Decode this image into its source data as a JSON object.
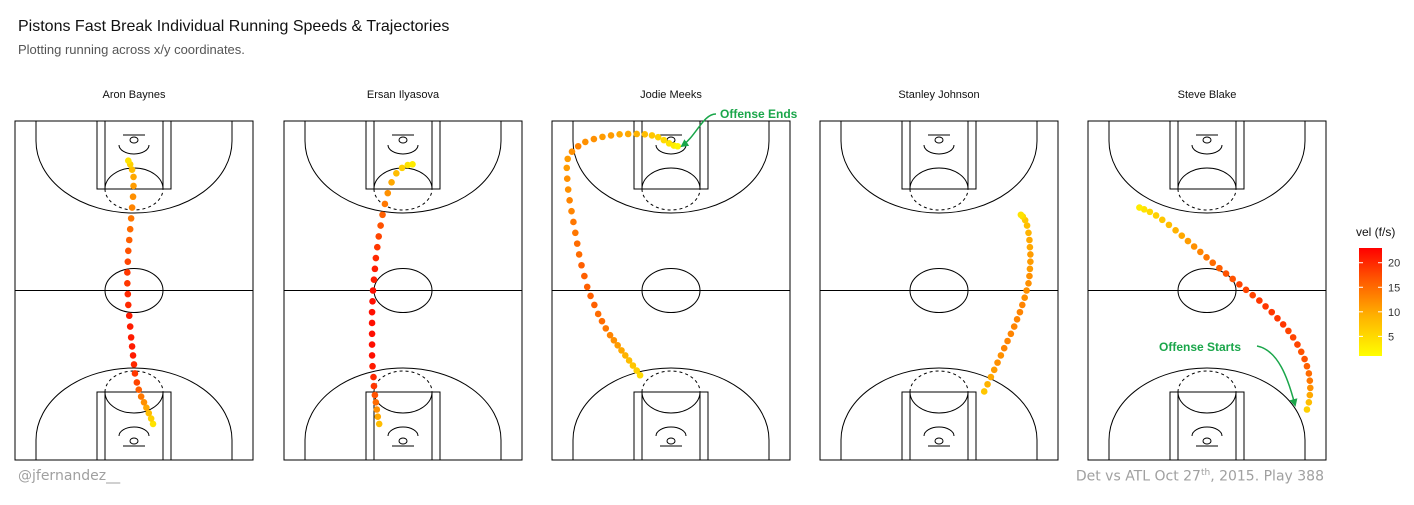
{
  "chart_data": {
    "type": "scatter",
    "title": "Pistons Fast Break Individual Running Speeds & Trajectories",
    "subtitle": "Plotting running across x/y coordinates.",
    "legend": {
      "title": "vel (f/s)",
      "ticks": [
        5,
        10,
        15,
        20
      ],
      "range": [
        1,
        23
      ],
      "colors": [
        "#ffff00",
        "#ffa500",
        "#ff4500",
        "#ff0000"
      ],
      "placement": "right"
    },
    "court": {
      "xlim": [
        0,
        50
      ],
      "ylim": [
        0,
        94
      ]
    },
    "panels": [
      {
        "name": "Aron Baynes",
        "points": [
          {
            "x": 29,
            "y": 10,
            "v": 4
          },
          {
            "x": 28.6,
            "y": 11.5,
            "v": 6
          },
          {
            "x": 28.1,
            "y": 13,
            "v": 8
          },
          {
            "x": 27.6,
            "y": 14.5,
            "v": 10
          },
          {
            "x": 27.1,
            "y": 16,
            "v": 12
          },
          {
            "x": 26.5,
            "y": 17.6,
            "v": 14
          },
          {
            "x": 26,
            "y": 19.5,
            "v": 16
          },
          {
            "x": 25.6,
            "y": 21.5,
            "v": 18
          },
          {
            "x": 25.2,
            "y": 24,
            "v": 19
          },
          {
            "x": 25,
            "y": 26.5,
            "v": 20
          },
          {
            "x": 24.8,
            "y": 29,
            "v": 21
          },
          {
            "x": 24.6,
            "y": 31.5,
            "v": 21
          },
          {
            "x": 24.4,
            "y": 34,
            "v": 21
          },
          {
            "x": 24.2,
            "y": 37,
            "v": 21
          },
          {
            "x": 24,
            "y": 40,
            "v": 21
          },
          {
            "x": 23.8,
            "y": 43,
            "v": 20
          },
          {
            "x": 23.7,
            "y": 46,
            "v": 20
          },
          {
            "x": 23.6,
            "y": 49,
            "v": 19
          },
          {
            "x": 23.6,
            "y": 52,
            "v": 19
          },
          {
            "x": 23.7,
            "y": 55,
            "v": 18
          },
          {
            "x": 23.8,
            "y": 58,
            "v": 17
          },
          {
            "x": 24,
            "y": 61,
            "v": 16
          },
          {
            "x": 24.2,
            "y": 64,
            "v": 15
          },
          {
            "x": 24.4,
            "y": 67,
            "v": 14
          },
          {
            "x": 24.6,
            "y": 70,
            "v": 13
          },
          {
            "x": 24.8,
            "y": 73,
            "v": 12
          },
          {
            "x": 24.9,
            "y": 76,
            "v": 11
          },
          {
            "x": 24.9,
            "y": 78.5,
            "v": 10
          },
          {
            "x": 24.6,
            "y": 80.5,
            "v": 8
          },
          {
            "x": 24.2,
            "y": 82,
            "v": 6
          },
          {
            "x": 23.8,
            "y": 83,
            "v": 4
          }
        ]
      },
      {
        "name": "Ersan Ilyasova",
        "points": [
          {
            "x": 20,
            "y": 10,
            "v": 8
          },
          {
            "x": 19.7,
            "y": 12,
            "v": 10
          },
          {
            "x": 19.5,
            "y": 14,
            "v": 12
          },
          {
            "x": 19.3,
            "y": 16,
            "v": 15
          },
          {
            "x": 19.1,
            "y": 18,
            "v": 17
          },
          {
            "x": 18.9,
            "y": 20.5,
            "v": 19
          },
          {
            "x": 18.8,
            "y": 23,
            "v": 20
          },
          {
            "x": 18.6,
            "y": 26,
            "v": 21
          },
          {
            "x": 18.5,
            "y": 29,
            "v": 22
          },
          {
            "x": 18.5,
            "y": 32,
            "v": 22
          },
          {
            "x": 18.5,
            "y": 35,
            "v": 22
          },
          {
            "x": 18.5,
            "y": 38,
            "v": 22
          },
          {
            "x": 18.5,
            "y": 41,
            "v": 22
          },
          {
            "x": 18.6,
            "y": 44,
            "v": 22
          },
          {
            "x": 18.7,
            "y": 47,
            "v": 22
          },
          {
            "x": 18.9,
            "y": 50,
            "v": 21
          },
          {
            "x": 19.1,
            "y": 53,
            "v": 21
          },
          {
            "x": 19.3,
            "y": 56,
            "v": 20
          },
          {
            "x": 19.6,
            "y": 59,
            "v": 19
          },
          {
            "x": 19.9,
            "y": 62,
            "v": 18
          },
          {
            "x": 20.3,
            "y": 65,
            "v": 17
          },
          {
            "x": 20.7,
            "y": 68,
            "v": 16
          },
          {
            "x": 21.2,
            "y": 71,
            "v": 14
          },
          {
            "x": 21.8,
            "y": 74,
            "v": 12
          },
          {
            "x": 22.6,
            "y": 77,
            "v": 10
          },
          {
            "x": 23.6,
            "y": 79.5,
            "v": 8
          },
          {
            "x": 24.8,
            "y": 81,
            "v": 6
          },
          {
            "x": 26,
            "y": 81.8,
            "v": 4
          },
          {
            "x": 27,
            "y": 82,
            "v": 3
          }
        ]
      },
      {
        "name": "Jodie Meeks",
        "points": [
          {
            "x": 18.5,
            "y": 23.5,
            "v": 5
          },
          {
            "x": 17.8,
            "y": 24.8,
            "v": 6
          },
          {
            "x": 17,
            "y": 26.2,
            "v": 7
          },
          {
            "x": 16.2,
            "y": 27.6,
            "v": 8
          },
          {
            "x": 15.4,
            "y": 29,
            "v": 9
          },
          {
            "x": 14.6,
            "y": 30.4,
            "v": 10
          },
          {
            "x": 13.8,
            "y": 31.8,
            "v": 11
          },
          {
            "x": 13,
            "y": 33.2,
            "v": 12
          },
          {
            "x": 12.2,
            "y": 34.6,
            "v": 13
          },
          {
            "x": 11.3,
            "y": 36.5,
            "v": 14
          },
          {
            "x": 10.5,
            "y": 38.5,
            "v": 15
          },
          {
            "x": 9.7,
            "y": 40.5,
            "v": 15
          },
          {
            "x": 8.9,
            "y": 43,
            "v": 16
          },
          {
            "x": 8.1,
            "y": 45.5,
            "v": 16
          },
          {
            "x": 7.4,
            "y": 48,
            "v": 16
          },
          {
            "x": 6.8,
            "y": 51,
            "v": 16
          },
          {
            "x": 6.2,
            "y": 54,
            "v": 16
          },
          {
            "x": 5.7,
            "y": 57,
            "v": 15
          },
          {
            "x": 5.3,
            "y": 60,
            "v": 15
          },
          {
            "x": 4.9,
            "y": 63,
            "v": 14
          },
          {
            "x": 4.5,
            "y": 66,
            "v": 14
          },
          {
            "x": 4.1,
            "y": 69,
            "v": 13
          },
          {
            "x": 3.7,
            "y": 72,
            "v": 13
          },
          {
            "x": 3.4,
            "y": 75,
            "v": 12
          },
          {
            "x": 3.2,
            "y": 78,
            "v": 12
          },
          {
            "x": 3.1,
            "y": 81,
            "v": 11
          },
          {
            "x": 3.3,
            "y": 83.5,
            "v": 11
          },
          {
            "x": 4.2,
            "y": 85.5,
            "v": 12
          },
          {
            "x": 5.5,
            "y": 87,
            "v": 13
          },
          {
            "x": 7,
            "y": 88.2,
            "v": 12
          },
          {
            "x": 8.8,
            "y": 89,
            "v": 12
          },
          {
            "x": 10.6,
            "y": 89.6,
            "v": 11
          },
          {
            "x": 12.4,
            "y": 90,
            "v": 11
          },
          {
            "x": 14.2,
            "y": 90.3,
            "v": 10
          },
          {
            "x": 16,
            "y": 90.4,
            "v": 10
          },
          {
            "x": 17.8,
            "y": 90.4,
            "v": 9
          },
          {
            "x": 19.5,
            "y": 90.3,
            "v": 8
          },
          {
            "x": 21,
            "y": 90,
            "v": 7
          },
          {
            "x": 22.3,
            "y": 89.5,
            "v": 6
          },
          {
            "x": 23.5,
            "y": 88.7,
            "v": 5
          },
          {
            "x": 24.6,
            "y": 87.8,
            "v": 4
          },
          {
            "x": 25.6,
            "y": 87.2,
            "v": 3
          },
          {
            "x": 26.4,
            "y": 87,
            "v": 2
          }
        ]
      },
      {
        "name": "Stanley Johnson",
        "points": [
          {
            "x": 34.5,
            "y": 19,
            "v": 7
          },
          {
            "x": 35.2,
            "y": 21,
            "v": 9
          },
          {
            "x": 35.9,
            "y": 23,
            "v": 10
          },
          {
            "x": 36.6,
            "y": 25,
            "v": 11
          },
          {
            "x": 37.3,
            "y": 27,
            "v": 12
          },
          {
            "x": 38,
            "y": 29,
            "v": 12
          },
          {
            "x": 38.7,
            "y": 31,
            "v": 13
          },
          {
            "x": 39.4,
            "y": 33,
            "v": 13
          },
          {
            "x": 40.1,
            "y": 35,
            "v": 13
          },
          {
            "x": 40.8,
            "y": 37,
            "v": 13
          },
          {
            "x": 41.4,
            "y": 39,
            "v": 13
          },
          {
            "x": 42,
            "y": 41,
            "v": 13
          },
          {
            "x": 42.5,
            "y": 43,
            "v": 13
          },
          {
            "x": 43,
            "y": 45,
            "v": 12
          },
          {
            "x": 43.4,
            "y": 47,
            "v": 12
          },
          {
            "x": 43.8,
            "y": 49,
            "v": 12
          },
          {
            "x": 44,
            "y": 51,
            "v": 12
          },
          {
            "x": 44.1,
            "y": 53,
            "v": 11
          },
          {
            "x": 44.2,
            "y": 55,
            "v": 11
          },
          {
            "x": 44.2,
            "y": 57,
            "v": 11
          },
          {
            "x": 44.1,
            "y": 59,
            "v": 10
          },
          {
            "x": 44,
            "y": 61,
            "v": 10
          },
          {
            "x": 43.8,
            "y": 63,
            "v": 9
          },
          {
            "x": 43.5,
            "y": 65,
            "v": 8
          },
          {
            "x": 43.1,
            "y": 66.5,
            "v": 7
          },
          {
            "x": 42.6,
            "y": 67.5,
            "v": 5
          },
          {
            "x": 42.2,
            "y": 68,
            "v": 4
          }
        ]
      },
      {
        "name": "Steve Blake",
        "points": [
          {
            "x": 46,
            "y": 14,
            "v": 6
          },
          {
            "x": 46.4,
            "y": 16,
            "v": 8
          },
          {
            "x": 46.6,
            "y": 18,
            "v": 10
          },
          {
            "x": 46.7,
            "y": 20,
            "v": 12
          },
          {
            "x": 46.6,
            "y": 22,
            "v": 14
          },
          {
            "x": 46.4,
            "y": 24,
            "v": 15
          },
          {
            "x": 46,
            "y": 26,
            "v": 16
          },
          {
            "x": 45.5,
            "y": 28,
            "v": 17
          },
          {
            "x": 44.8,
            "y": 30,
            "v": 17
          },
          {
            "x": 44,
            "y": 32,
            "v": 18
          },
          {
            "x": 43.1,
            "y": 34,
            "v": 18
          },
          {
            "x": 42.1,
            "y": 35.8,
            "v": 18
          },
          {
            "x": 41,
            "y": 37.6,
            "v": 19
          },
          {
            "x": 39.8,
            "y": 39.3,
            "v": 19
          },
          {
            "x": 38.6,
            "y": 41,
            "v": 19
          },
          {
            "x": 37.3,
            "y": 42.6,
            "v": 19
          },
          {
            "x": 36,
            "y": 44.2,
            "v": 19
          },
          {
            "x": 34.6,
            "y": 45.7,
            "v": 18
          },
          {
            "x": 33.2,
            "y": 47.2,
            "v": 18
          },
          {
            "x": 31.8,
            "y": 48.7,
            "v": 18
          },
          {
            "x": 30.4,
            "y": 50.2,
            "v": 17
          },
          {
            "x": 29,
            "y": 51.7,
            "v": 17
          },
          {
            "x": 27.6,
            "y": 53.2,
            "v": 16
          },
          {
            "x": 26.2,
            "y": 54.7,
            "v": 15
          },
          {
            "x": 24.9,
            "y": 56.2,
            "v": 14
          },
          {
            "x": 23.6,
            "y": 57.7,
            "v": 13
          },
          {
            "x": 22.3,
            "y": 59.2,
            "v": 12
          },
          {
            "x": 21,
            "y": 60.7,
            "v": 11
          },
          {
            "x": 19.7,
            "y": 62.2,
            "v": 10
          },
          {
            "x": 18.4,
            "y": 63.7,
            "v": 9
          },
          {
            "x": 17,
            "y": 65.2,
            "v": 8
          },
          {
            "x": 15.6,
            "y": 66.6,
            "v": 7
          },
          {
            "x": 14.3,
            "y": 67.8,
            "v": 6
          },
          {
            "x": 13,
            "y": 68.8,
            "v": 5
          },
          {
            "x": 11.8,
            "y": 69.5,
            "v": 4
          },
          {
            "x": 10.8,
            "y": 70,
            "v": 3
          }
        ]
      }
    ],
    "annotations": [
      {
        "panel": 2,
        "text": "Offense Ends"
      },
      {
        "panel": 4,
        "text": "Offense Starts"
      }
    ],
    "annotation_color": "#1aa64a"
  },
  "footer": {
    "left": "@jfernandez__",
    "right_main": "Det vs ATL Oct 27",
    "right_sup": "th",
    "right_tail": ", 2015. Play 388"
  }
}
